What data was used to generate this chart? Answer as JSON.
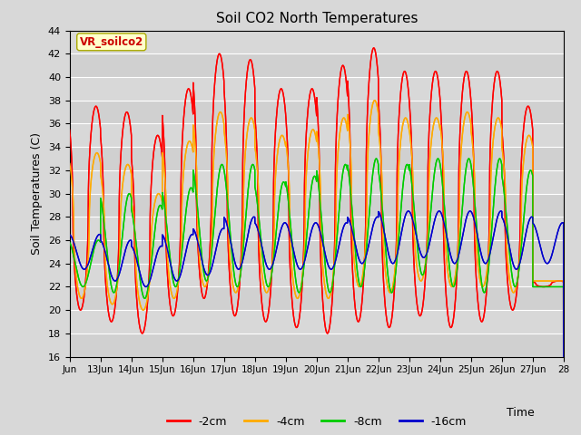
{
  "title": "Soil CO2 North Temperatures",
  "ylabel": "Soil Temperatures (C)",
  "xlabel": "Time",
  "ylim": [
    16,
    44
  ],
  "xlim": [
    0,
    16
  ],
  "background_color": "#d8d8d8",
  "plot_bg_color": "#d8d8d8",
  "annotation_text": "VR_soilco2",
  "annotation_color": "#cc0000",
  "annotation_bg": "#ffffcc",
  "annotation_border": "#aaaa00",
  "xtick_labels": [
    "Jun",
    "13Jun",
    "14Jun",
    "15Jun",
    "16Jun",
    "17Jun",
    "18Jun",
    "19Jun",
    "20Jun",
    "21Jun",
    "22Jun",
    "23Jun",
    "24Jun",
    "25Jun",
    "26Jun",
    "27Jun",
    "28"
  ],
  "series_colors": [
    "#ff0000",
    "#ffaa00",
    "#00cc00",
    "#0000cc"
  ],
  "series_labels": [
    "-2cm",
    "-4cm",
    "-8cm",
    "-16cm"
  ],
  "grid_color": "#ffffff",
  "n_days": 16,
  "samples_per_day": 240,
  "peaks_2cm": [
    37.5,
    37.0,
    35.0,
    39.0,
    42.0,
    41.5,
    39.0,
    39.0,
    41.0,
    42.5,
    40.5,
    40.5,
    40.5,
    40.5,
    37.5,
    22.5
  ],
  "troughs_2cm": [
    20.0,
    19.0,
    18.0,
    19.5,
    21.0,
    19.5,
    19.0,
    18.5,
    18.0,
    19.0,
    18.5,
    19.5,
    18.5,
    19.0,
    20.0,
    22.0
  ],
  "peaks_4cm": [
    33.5,
    32.5,
    30.0,
    34.5,
    37.0,
    36.5,
    35.0,
    35.5,
    36.5,
    38.0,
    36.5,
    36.5,
    37.0,
    36.5,
    35.0,
    22.5
  ],
  "troughs_4cm": [
    21.0,
    20.5,
    20.0,
    21.0,
    22.0,
    21.5,
    21.5,
    21.0,
    21.0,
    22.0,
    21.5,
    22.5,
    22.0,
    22.0,
    21.5,
    22.5
  ],
  "peaks_8cm": [
    26.0,
    30.0,
    29.0,
    30.5,
    32.5,
    32.5,
    31.0,
    31.5,
    32.5,
    33.0,
    32.5,
    33.0,
    33.0,
    33.0,
    32.0,
    22.0
  ],
  "troughs_8cm": [
    22.0,
    21.5,
    21.0,
    22.0,
    22.5,
    22.0,
    22.0,
    21.5,
    21.5,
    22.0,
    21.5,
    23.0,
    22.0,
    21.5,
    22.0,
    22.0
  ],
  "peaks_16cm": [
    26.5,
    26.0,
    25.5,
    26.5,
    27.0,
    28.0,
    27.5,
    27.5,
    27.5,
    28.0,
    28.5,
    28.5,
    28.5,
    28.5,
    28.0,
    27.5
  ],
  "troughs_16cm": [
    23.5,
    22.5,
    22.0,
    22.5,
    23.0,
    23.5,
    23.5,
    23.5,
    23.5,
    24.0,
    24.0,
    24.5,
    24.0,
    24.0,
    23.5,
    24.0
  ]
}
